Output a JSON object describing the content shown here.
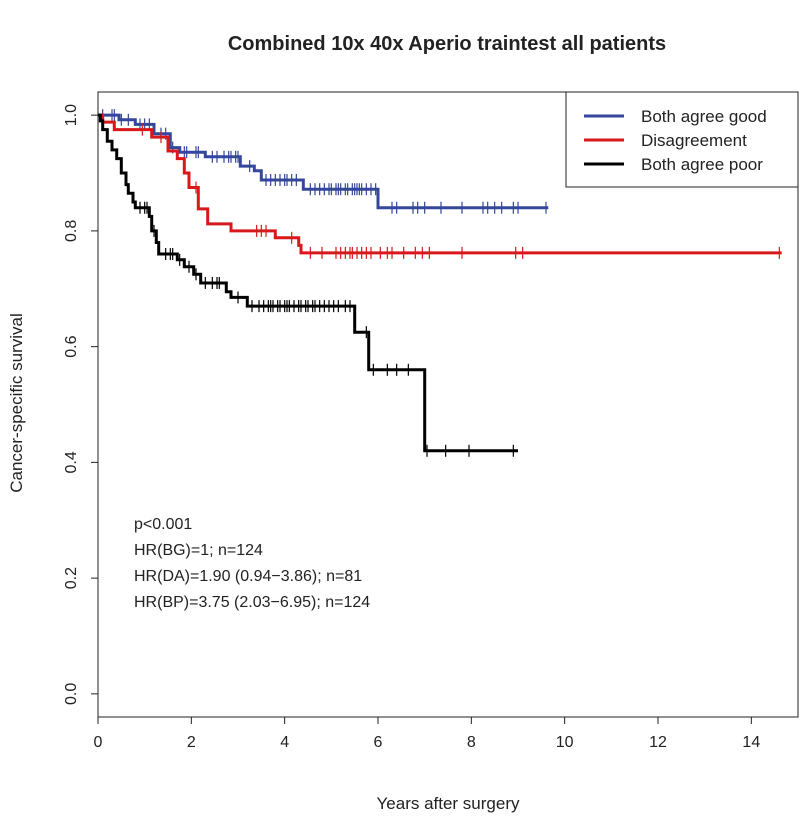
{
  "chart_data": {
    "type": "line",
    "title": "Combined 10x 40x Aperio traintest all patients",
    "xlabel": "Years after surgery",
    "ylabel": "Cancer-specific survival",
    "xlim": [
      0,
      15
    ],
    "ylim": [
      -0.04,
      1.04
    ],
    "xticks": [
      "0",
      "2",
      "4",
      "6",
      "8",
      "10",
      "12",
      "14"
    ],
    "yticks": [
      "0.0",
      "0.2",
      "0.4",
      "0.6",
      "0.8",
      "1.0"
    ],
    "grid": false,
    "legend_position": "top-right",
    "annotations": [
      "p<0.001",
      "HR(BG)=1; n=124",
      "HR(DA)=1.90 (0.94−3.86); n=81",
      "HR(BP)=3.75 (2.03−6.95); n=124"
    ],
    "series": [
      {
        "name": "Both agree good",
        "color": "#34479a",
        "steps": [
          [
            0,
            1.0
          ],
          [
            0.45,
            0.992
          ],
          [
            0.8,
            0.984
          ],
          [
            1.2,
            0.968
          ],
          [
            1.55,
            0.944
          ],
          [
            1.75,
            0.936
          ],
          [
            2.3,
            0.928
          ],
          [
            3.05,
            0.912
          ],
          [
            3.35,
            0.904
          ],
          [
            3.5,
            0.888
          ],
          [
            4.4,
            0.872
          ],
          [
            6.0,
            0.84
          ],
          [
            9.65,
            0.84
          ]
        ],
        "censor": [
          0.1,
          0.3,
          0.35,
          0.5,
          0.65,
          0.9,
          1.0,
          1.1,
          1.35,
          1.45,
          1.6,
          1.85,
          1.9,
          2.1,
          2.15,
          2.45,
          2.55,
          2.7,
          2.8,
          2.85,
          2.95,
          3.0,
          3.25,
          3.6,
          3.7,
          3.8,
          3.9,
          4.0,
          4.05,
          4.15,
          4.25,
          4.55,
          4.65,
          4.75,
          4.85,
          4.95,
          5.0,
          5.1,
          5.15,
          5.2,
          5.3,
          5.35,
          5.45,
          5.5,
          5.55,
          5.6,
          5.65,
          5.75,
          5.85,
          5.95,
          6.3,
          6.4,
          6.75,
          6.85,
          7.0,
          7.35,
          7.8,
          8.25,
          8.35,
          8.5,
          8.65,
          8.9,
          9.0,
          9.6
        ]
      },
      {
        "name": "Disagreement",
        "color": "#d7191c",
        "steps": [
          [
            0,
            1.0
          ],
          [
            0.1,
            0.988
          ],
          [
            0.35,
            0.975
          ],
          [
            1.15,
            0.962
          ],
          [
            1.5,
            0.938
          ],
          [
            1.7,
            0.925
          ],
          [
            1.85,
            0.9
          ],
          [
            1.95,
            0.875
          ],
          [
            2.15,
            0.838
          ],
          [
            2.35,
            0.812
          ],
          [
            2.85,
            0.8
          ],
          [
            3.2,
            0.8
          ],
          [
            3.8,
            0.788
          ],
          [
            4.3,
            0.775
          ],
          [
            4.35,
            0.762
          ],
          [
            14.65,
            0.762
          ]
        ],
        "censor": [
          0.95,
          1.35,
          2.1,
          3.4,
          3.5,
          3.6,
          4.15,
          4.55,
          4.8,
          5.1,
          5.2,
          5.3,
          5.4,
          5.45,
          5.55,
          5.65,
          5.75,
          5.85,
          6.05,
          6.2,
          6.3,
          6.55,
          6.8,
          6.95,
          7.1,
          7.8,
          8.95,
          9.1,
          14.6
        ]
      },
      {
        "name": "Both agree poor",
        "color": "#000000",
        "steps": [
          [
            0,
            1.0
          ],
          [
            0.05,
            0.99
          ],
          [
            0.1,
            0.975
          ],
          [
            0.2,
            0.955
          ],
          [
            0.3,
            0.94
          ],
          [
            0.4,
            0.925
          ],
          [
            0.5,
            0.9
          ],
          [
            0.6,
            0.88
          ],
          [
            0.65,
            0.865
          ],
          [
            0.75,
            0.85
          ],
          [
            0.8,
            0.84
          ],
          [
            1.1,
            0.825
          ],
          [
            1.15,
            0.8
          ],
          [
            1.25,
            0.78
          ],
          [
            1.3,
            0.76
          ],
          [
            1.7,
            0.75
          ],
          [
            1.85,
            0.738
          ],
          [
            2.05,
            0.725
          ],
          [
            2.2,
            0.71
          ],
          [
            2.75,
            0.695
          ],
          [
            2.85,
            0.685
          ],
          [
            3.2,
            0.67
          ],
          [
            5.5,
            0.625
          ],
          [
            5.8,
            0.56
          ],
          [
            7.0,
            0.42
          ],
          [
            9.0,
            0.42
          ]
        ],
        "censor": [
          0.9,
          1.0,
          1.05,
          1.2,
          1.45,
          1.55,
          1.6,
          1.75,
          1.95,
          2.1,
          2.3,
          2.45,
          2.55,
          2.6,
          3.0,
          3.3,
          3.45,
          3.55,
          3.65,
          3.7,
          3.75,
          3.85,
          3.9,
          4.0,
          4.05,
          4.1,
          4.2,
          4.3,
          4.35,
          4.45,
          4.5,
          4.6,
          4.65,
          4.75,
          4.85,
          4.95,
          5.05,
          5.15,
          5.3,
          5.4,
          5.75,
          5.9,
          6.2,
          6.4,
          6.65,
          7.05,
          7.45,
          7.95,
          8.9
        ]
      }
    ]
  }
}
